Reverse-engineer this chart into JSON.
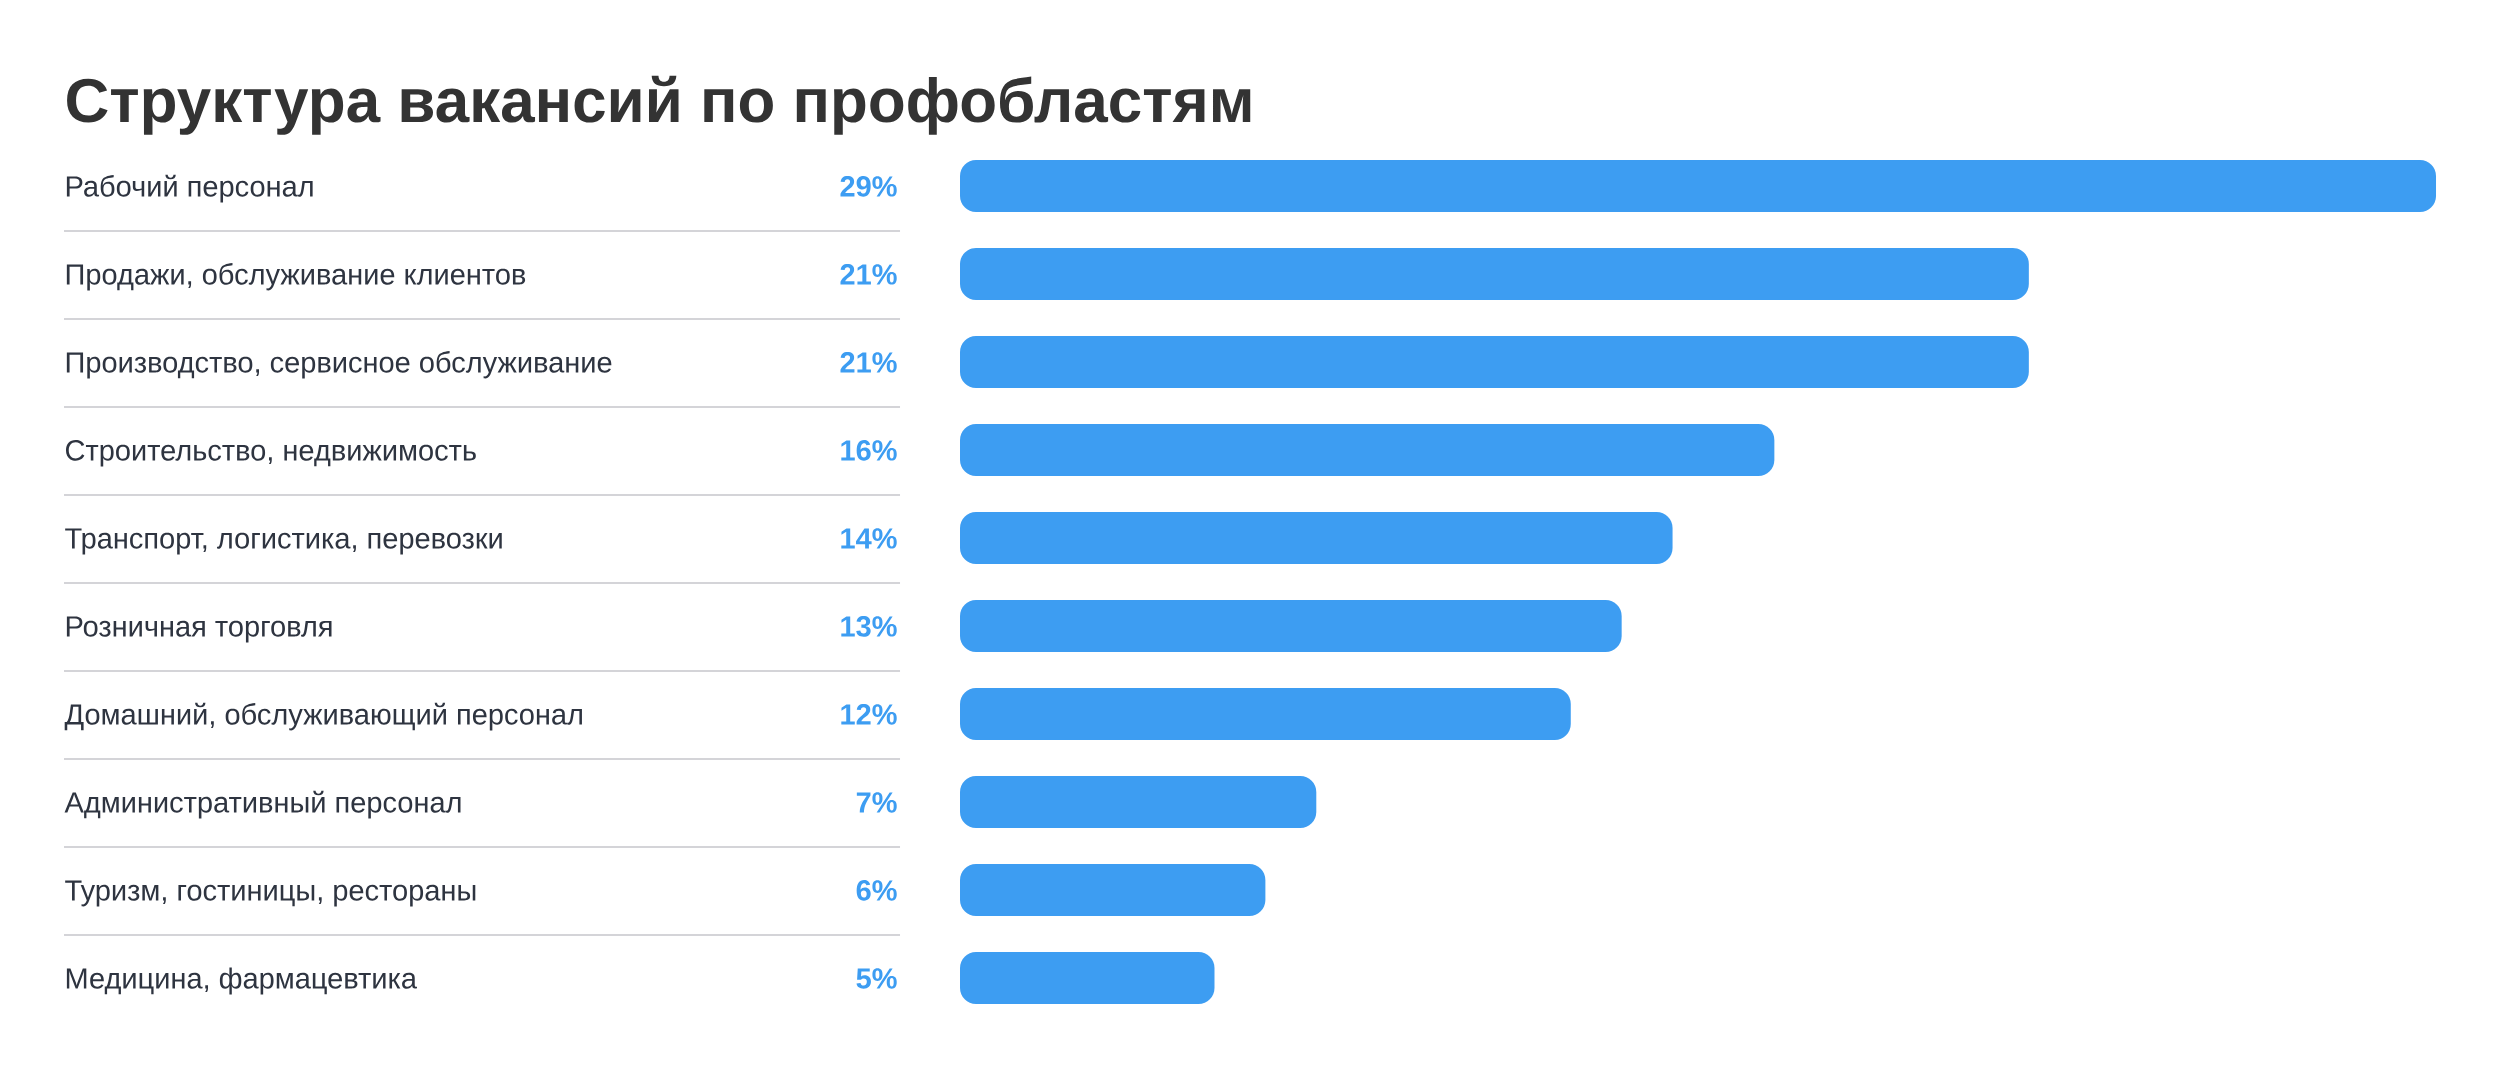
{
  "chart_data": {
    "type": "bar",
    "orientation": "horizontal",
    "title": "Структура вакансий по профобластям",
    "categories": [
      "Рабочий персонал",
      "Продажи, обслуживание клиентов",
      "Производство, сервисное обслуживание",
      "Строительство, недвижимость",
      "Транспорт, логистика, перевозки",
      "Розничная торговля",
      "Домашний, обслуживающий персонал",
      "Административный персонал",
      "Туризм, гостиницы, рестораны",
      "Медицина, фармацевтика"
    ],
    "values": [
      29,
      21,
      21,
      16,
      14,
      13,
      12,
      7,
      6,
      5
    ],
    "value_labels": [
      "29%",
      "21%",
      "21%",
      "16%",
      "14%",
      "13%",
      "12%",
      "7%",
      "6%",
      "5%"
    ],
    "color": "#3d9df2",
    "tick_labels": "y"
  }
}
